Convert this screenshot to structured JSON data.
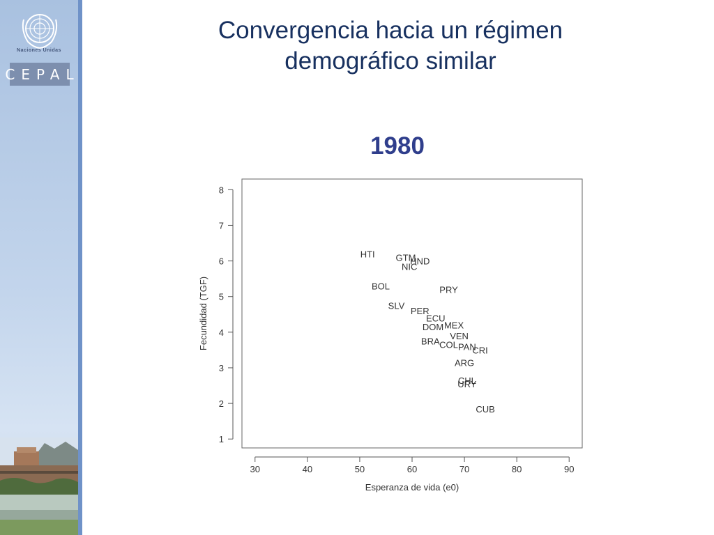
{
  "sidebar": {
    "org_name": "Naciones Unidas",
    "org_acronym": "CEPAL",
    "colors": {
      "panel": "#a9c1e0",
      "edge": "#6f92c8",
      "acronym_box": "#7d8fae"
    },
    "icons": [
      "un-emblem-icon",
      "building-photo"
    ]
  },
  "slide": {
    "title_line1": "Convergencia hacia un régimen",
    "title_line2": "demográfico similar",
    "subtitle": "1980",
    "colors": {
      "title": "#17305f",
      "subtitle": "#2f3e8c"
    }
  },
  "chart_data": {
    "type": "scatter",
    "title": "1980",
    "xlabel": "Esperanza de vida (e0)",
    "ylabel": "Fecundidad (TGF)",
    "xlim": [
      27.5,
      92.5
    ],
    "ylim": [
      0.75,
      8.3
    ],
    "xticks": [
      30,
      40,
      50,
      60,
      70,
      80,
      90
    ],
    "yticks": [
      1,
      2,
      3,
      4,
      5,
      6,
      7,
      8
    ],
    "grid": false,
    "marker": "text-label",
    "points": [
      {
        "label": "HTI",
        "x": 51.5,
        "y": 6.2
      },
      {
        "label": "GTM",
        "x": 58.8,
        "y": 6.1
      },
      {
        "label": "HND",
        "x": 61.5,
        "y": 6.0
      },
      {
        "label": "NIC",
        "x": 59.5,
        "y": 5.85
      },
      {
        "label": "BOL",
        "x": 54.0,
        "y": 5.3
      },
      {
        "label": "PRY",
        "x": 67.0,
        "y": 5.2
      },
      {
        "label": "SLV",
        "x": 57.0,
        "y": 4.75
      },
      {
        "label": "PER",
        "x": 61.5,
        "y": 4.6
      },
      {
        "label": "ECU",
        "x": 64.5,
        "y": 4.4
      },
      {
        "label": "MEX",
        "x": 68.0,
        "y": 4.2
      },
      {
        "label": "DOM",
        "x": 64.0,
        "y": 4.15
      },
      {
        "label": "VEN",
        "x": 69.0,
        "y": 3.9
      },
      {
        "label": "BRA",
        "x": 63.5,
        "y": 3.75
      },
      {
        "label": "COL",
        "x": 67.0,
        "y": 3.65
      },
      {
        "label": "PAN",
        "x": 70.5,
        "y": 3.6
      },
      {
        "label": "CRI",
        "x": 73.0,
        "y": 3.5
      },
      {
        "label": "ARG",
        "x": 70.0,
        "y": 3.15
      },
      {
        "label": "CHL",
        "x": 70.5,
        "y": 2.65
      },
      {
        "label": "URY",
        "x": 70.5,
        "y": 2.55
      },
      {
        "label": "CUB",
        "x": 74.0,
        "y": 1.85
      }
    ]
  }
}
